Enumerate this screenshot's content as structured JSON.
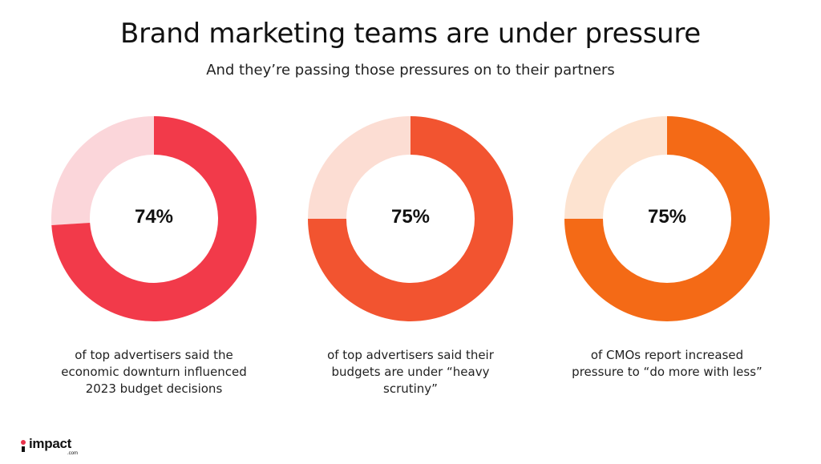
{
  "title": "Brand marketing teams are under pressure",
  "subtitle": "And they’re passing those pressures on to their partners",
  "chart_data": [
    {
      "type": "pie",
      "value": 74,
      "label": "74%",
      "caption": "of top advertisers said the economic downturn influenced 2023 budget decisions",
      "color": "#f23a4a",
      "track_color": "#fbd6da"
    },
    {
      "type": "pie",
      "value": 75,
      "label": "75%",
      "caption": "of top advertisers said their budgets are under “heavy scrutiny”",
      "color": "#f25430",
      "track_color": "#fcddd3"
    },
    {
      "type": "pie",
      "value": 75,
      "label": "75%",
      "caption": "of CMOs report increased pressure to “do more with less”",
      "color": "#f46a16",
      "track_color": "#fde3d0"
    }
  ],
  "logo": {
    "word": "impact",
    "sub": ".com"
  }
}
